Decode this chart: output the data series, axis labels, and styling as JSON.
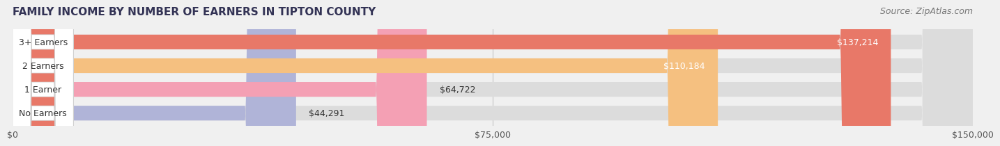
{
  "title": "FAMILY INCOME BY NUMBER OF EARNERS IN TIPTON COUNTY",
  "source": "Source: ZipAtlas.com",
  "categories": [
    "No Earners",
    "1 Earner",
    "2 Earners",
    "3+ Earners"
  ],
  "values": [
    44291,
    64722,
    110184,
    137214
  ],
  "labels": [
    "$44,291",
    "$64,722",
    "$110,184",
    "$137,214"
  ],
  "bar_colors": [
    "#b0b4d8",
    "#f4a0b4",
    "#f5c080",
    "#e87868"
  ],
  "bar_bg_color": "#e8e8e8",
  "background_color": "#f0f0f0",
  "label_colors": [
    "#333333",
    "#333333",
    "#ffffff",
    "#ffffff"
  ],
  "xlim": [
    0,
    150000
  ],
  "xticks": [
    0,
    75000,
    150000
  ],
  "xticklabels": [
    "$0",
    "$75,000",
    "$150,000"
  ],
  "title_fontsize": 11,
  "source_fontsize": 9,
  "tick_fontsize": 9,
  "bar_label_fontsize": 9,
  "cat_label_fontsize": 9
}
